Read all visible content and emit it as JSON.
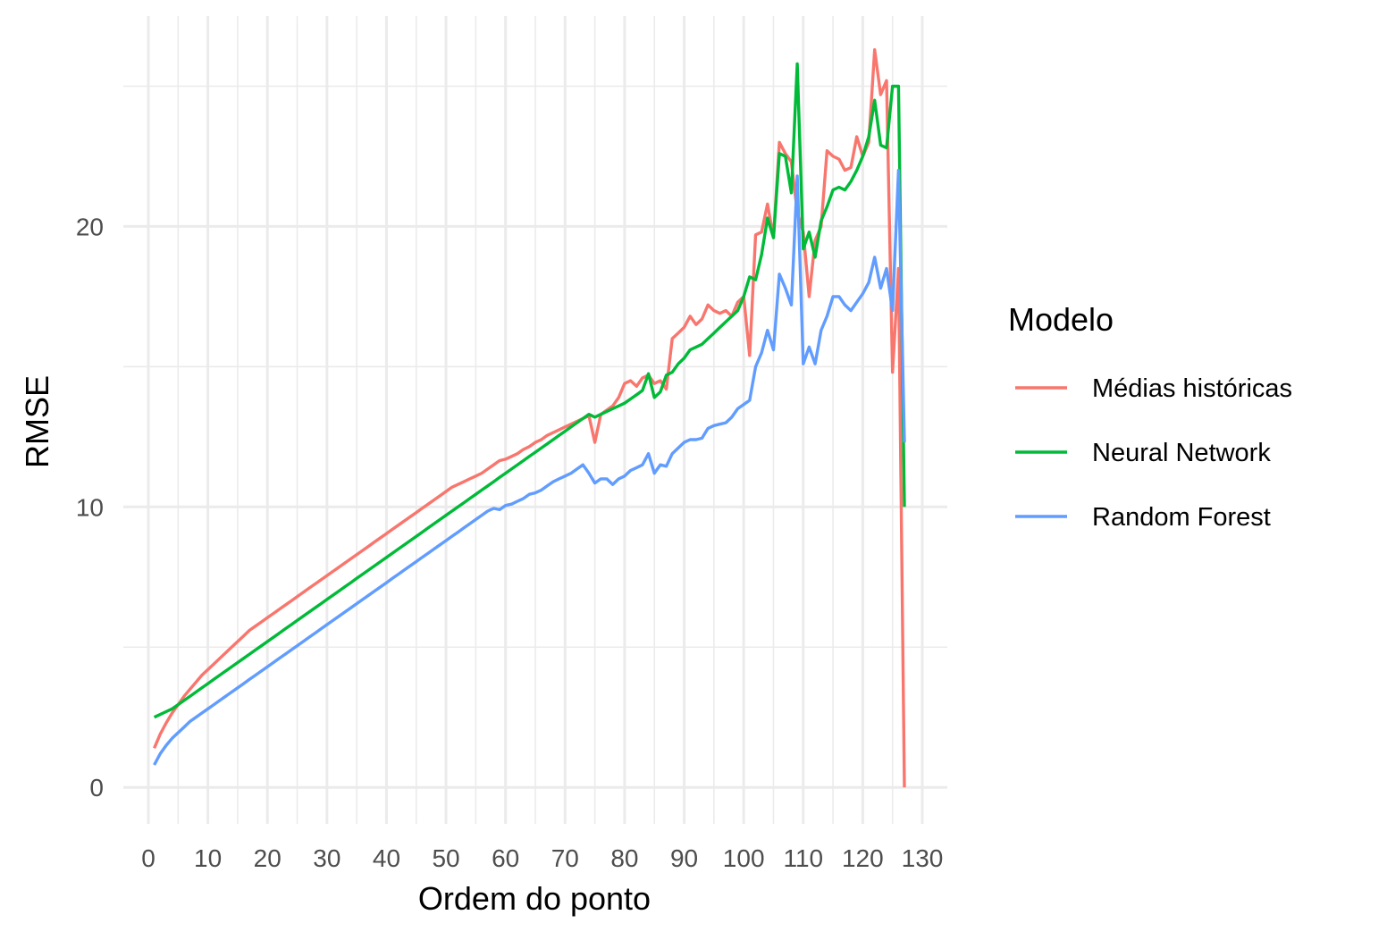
{
  "chart_data": {
    "type": "line",
    "xlabel": "Ordem do ponto",
    "ylabel": "RMSE",
    "xlim": [
      -4.2,
      134.2
    ],
    "ylim": [
      -1.3,
      27.5
    ],
    "x_ticks": [
      0,
      10,
      20,
      30,
      40,
      50,
      60,
      70,
      80,
      90,
      100,
      110,
      120,
      130
    ],
    "y_ticks": [
      0,
      10,
      20
    ],
    "grid": true,
    "legend": {
      "title": "Modelo",
      "placement": "right",
      "entries": [
        "Médias históricas",
        "Neural Network",
        "Random Forest"
      ]
    },
    "x": [
      1,
      2,
      3,
      4,
      5,
      6,
      7,
      8,
      9,
      10,
      11,
      12,
      13,
      14,
      15,
      16,
      17,
      18,
      19,
      20,
      21,
      22,
      23,
      24,
      25,
      26,
      27,
      28,
      29,
      30,
      31,
      32,
      33,
      34,
      35,
      36,
      37,
      38,
      39,
      40,
      41,
      42,
      43,
      44,
      45,
      46,
      47,
      48,
      49,
      50,
      51,
      52,
      53,
      54,
      55,
      56,
      57,
      58,
      59,
      60,
      61,
      62,
      63,
      64,
      65,
      66,
      67,
      68,
      69,
      70,
      71,
      72,
      73,
      74,
      75,
      76,
      77,
      78,
      79,
      80,
      81,
      82,
      83,
      84,
      85,
      86,
      87,
      88,
      89,
      90,
      91,
      92,
      93,
      94,
      95,
      96,
      97,
      98,
      99,
      100,
      101,
      102,
      103,
      104,
      105,
      106,
      107,
      108,
      109,
      110,
      111,
      112,
      113,
      114,
      115,
      116,
      117,
      118,
      119,
      120,
      121,
      122,
      123,
      124,
      125,
      126,
      127
    ],
    "series": [
      {
        "name": "Médias históricas",
        "color": "#F8766D",
        "values": [
          1.4,
          1.9,
          2.3,
          2.65,
          2.95,
          3.25,
          3.5,
          3.75,
          4.0,
          4.2,
          4.4,
          4.6,
          4.8,
          5.0,
          5.2,
          5.4,
          5.6,
          5.75,
          5.9,
          6.05,
          6.2,
          6.35,
          6.5,
          6.65,
          6.8,
          6.95,
          7.1,
          7.25,
          7.4,
          7.55,
          7.7,
          7.85,
          8.0,
          8.15,
          8.3,
          8.45,
          8.6,
          8.75,
          8.9,
          9.05,
          9.2,
          9.35,
          9.5,
          9.65,
          9.8,
          9.95,
          10.1,
          10.25,
          10.4,
          10.55,
          10.7,
          10.8,
          10.9,
          11.0,
          11.1,
          11.2,
          11.35,
          11.5,
          11.65,
          11.7,
          11.8,
          11.9,
          12.05,
          12.15,
          12.3,
          12.4,
          12.55,
          12.65,
          12.75,
          12.85,
          12.95,
          13.05,
          13.15,
          13.25,
          12.3,
          13.3,
          13.45,
          13.6,
          13.9,
          14.4,
          14.5,
          14.3,
          14.6,
          14.7,
          14.4,
          14.5,
          14.2,
          16.0,
          16.2,
          16.4,
          16.8,
          16.5,
          16.7,
          17.2,
          17.0,
          16.9,
          17.0,
          16.8,
          17.3,
          17.5,
          15.4,
          19.7,
          19.8,
          20.8,
          19.6,
          23.0,
          22.6,
          22.3,
          20.5,
          19.8,
          17.5,
          19.5,
          20.0,
          22.7,
          22.5,
          22.4,
          22.0,
          22.1,
          23.2,
          22.5,
          23.0,
          26.3,
          24.7,
          25.2,
          14.8,
          18.5,
          0.0
        ]
      },
      {
        "name": "Neural Network",
        "color": "#00BA38",
        "values": [
          2.5,
          2.6,
          2.7,
          2.8,
          2.95,
          3.1,
          3.25,
          3.4,
          3.55,
          3.7,
          3.85,
          4.0,
          4.15,
          4.3,
          4.45,
          4.6,
          4.75,
          4.9,
          5.05,
          5.2,
          5.35,
          5.5,
          5.65,
          5.8,
          5.95,
          6.1,
          6.25,
          6.4,
          6.55,
          6.7,
          6.85,
          7.0,
          7.15,
          7.3,
          7.45,
          7.6,
          7.75,
          7.9,
          8.05,
          8.2,
          8.35,
          8.5,
          8.65,
          8.8,
          8.95,
          9.1,
          9.25,
          9.4,
          9.55,
          9.7,
          9.85,
          10.0,
          10.15,
          10.3,
          10.45,
          10.6,
          10.75,
          10.9,
          11.05,
          11.2,
          11.35,
          11.5,
          11.65,
          11.8,
          11.95,
          12.1,
          12.25,
          12.4,
          12.55,
          12.7,
          12.85,
          13.0,
          13.15,
          13.3,
          13.2,
          13.3,
          13.4,
          13.5,
          13.6,
          13.7,
          13.85,
          14.0,
          14.15,
          14.75,
          13.9,
          14.1,
          14.7,
          14.8,
          15.1,
          15.3,
          15.6,
          15.7,
          15.8,
          16.0,
          16.2,
          16.4,
          16.6,
          16.8,
          17.0,
          17.5,
          18.2,
          18.1,
          19.0,
          20.3,
          19.6,
          22.6,
          22.5,
          21.2,
          25.8,
          19.2,
          19.8,
          18.9,
          20.2,
          20.7,
          21.3,
          21.4,
          21.3,
          21.6,
          22.0,
          22.5,
          23.2,
          24.5,
          22.9,
          22.8,
          25.0,
          25.0,
          10.0
        ]
      },
      {
        "name": "Random Forest",
        "color": "#619CFF",
        "values": [
          0.8,
          1.2,
          1.5,
          1.75,
          1.95,
          2.15,
          2.35,
          2.5,
          2.65,
          2.8,
          2.95,
          3.1,
          3.25,
          3.4,
          3.55,
          3.7,
          3.85,
          4.0,
          4.15,
          4.3,
          4.45,
          4.6,
          4.75,
          4.9,
          5.05,
          5.2,
          5.35,
          5.5,
          5.65,
          5.8,
          5.95,
          6.1,
          6.25,
          6.4,
          6.55,
          6.7,
          6.85,
          7.0,
          7.15,
          7.3,
          7.45,
          7.6,
          7.75,
          7.9,
          8.05,
          8.2,
          8.35,
          8.5,
          8.65,
          8.8,
          8.95,
          9.1,
          9.25,
          9.4,
          9.55,
          9.7,
          9.85,
          9.95,
          9.9,
          10.05,
          10.1,
          10.2,
          10.3,
          10.45,
          10.5,
          10.6,
          10.75,
          10.9,
          11.0,
          11.1,
          11.2,
          11.35,
          11.5,
          11.2,
          10.85,
          11.0,
          11.0,
          10.8,
          11.0,
          11.1,
          11.3,
          11.4,
          11.5,
          11.9,
          11.2,
          11.5,
          11.45,
          11.9,
          12.1,
          12.3,
          12.4,
          12.4,
          12.45,
          12.8,
          12.9,
          12.95,
          13.0,
          13.2,
          13.5,
          13.65,
          13.8,
          15.0,
          15.5,
          16.3,
          15.6,
          18.3,
          17.8,
          17.2,
          21.8,
          15.1,
          15.7,
          15.1,
          16.3,
          16.8,
          17.5,
          17.5,
          17.2,
          17.0,
          17.3,
          17.6,
          18.0,
          18.9,
          17.8,
          18.5,
          17.0,
          22.0,
          12.3
        ]
      }
    ]
  }
}
